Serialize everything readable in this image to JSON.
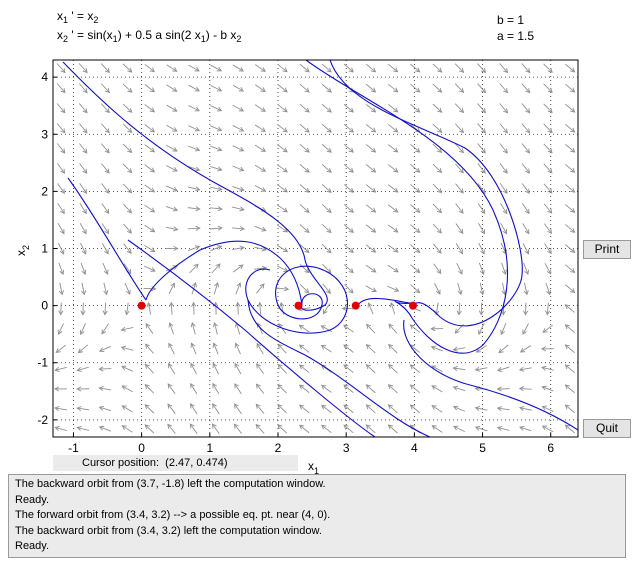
{
  "equations": {
    "line1": {
      "lhs_var": "x",
      "lhs_sub": "1",
      "prime": " ' = ",
      "rhs_var": "x",
      "rhs_sub": "2"
    },
    "line2": {
      "lhs_var": "x",
      "lhs_sub": "2",
      "prime": " ' = ",
      "t1": "sin(x",
      "s1": "1",
      "t2": ") + 0.5 a sin(2 x",
      "s2": "1",
      "t3": ") - b x",
      "s3": "2"
    }
  },
  "params": {
    "b": "b = 1",
    "a": "a = 1.5"
  },
  "buttons": {
    "print": "Print",
    "quit": "Quit"
  },
  "axes": {
    "x_label": "x",
    "x_label_sub": "1",
    "y_label": "x",
    "y_label_sub": "2",
    "x_ticks": [
      "-1",
      "0",
      "1",
      "2",
      "3",
      "4",
      "5",
      "6"
    ],
    "y_ticks": [
      "-2",
      "-1",
      "0",
      "1",
      "2",
      "3",
      "4"
    ],
    "xlim": [
      -1.3,
      6.4
    ],
    "ylim": [
      -2.3,
      4.3
    ],
    "grid": "dotted"
  },
  "equilibria": [
    {
      "x": 0,
      "y": 0
    },
    {
      "x": 2.3,
      "y": 0
    },
    {
      "x": 3.14,
      "y": 0
    },
    {
      "x": 3.98,
      "y": 0
    }
  ],
  "cursor": {
    "label": "Cursor position:",
    "value": "(2.47, 0.474)"
  },
  "log": [
    "The backward orbit from (3.7, -1.8) left the computation window.",
    "Ready.",
    "The forward orbit from (3.4, 3.2) --> a possible eq. pt. near (4, 0).",
    "The backward orbit from (3.4, 3.2) left the computation window.",
    "Ready."
  ],
  "colors": {
    "orbit": "#1010c8",
    "equilibrium": "#dd0000",
    "field": "#909090"
  }
}
